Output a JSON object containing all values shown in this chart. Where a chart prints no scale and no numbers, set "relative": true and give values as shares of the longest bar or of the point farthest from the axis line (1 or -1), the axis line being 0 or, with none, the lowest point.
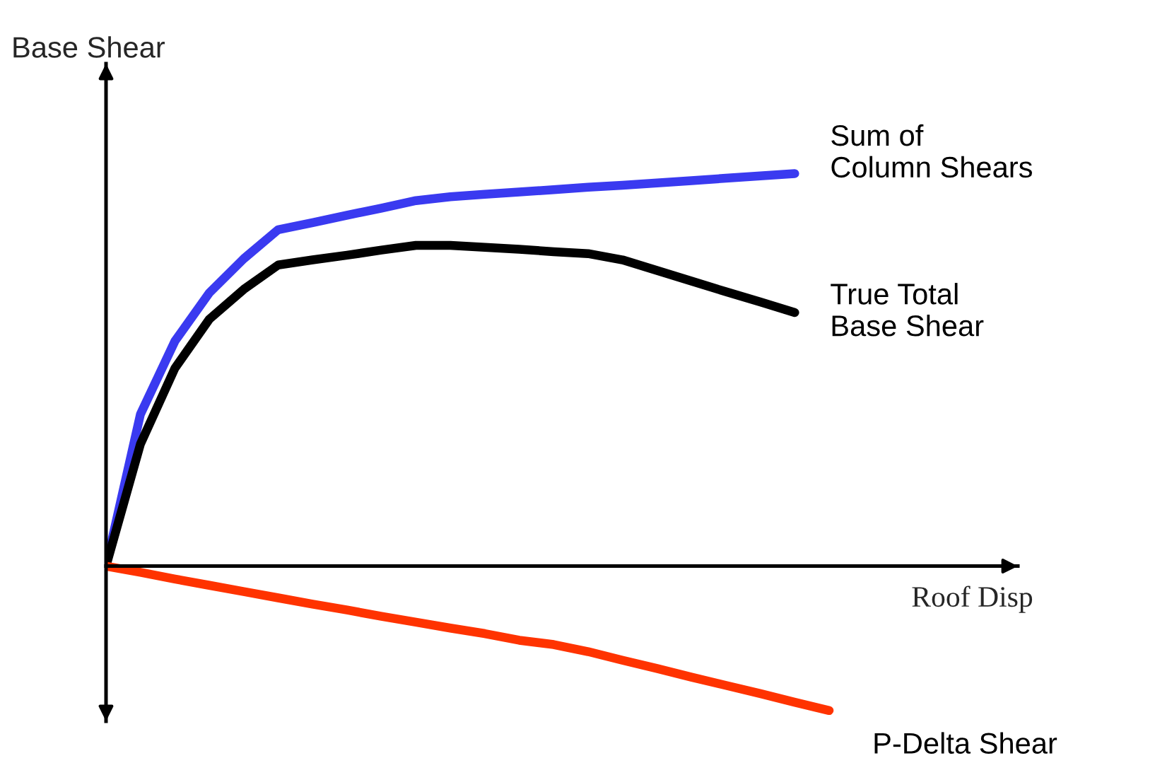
{
  "chart_data": {
    "type": "line",
    "relative": true,
    "xlabel": "Roof Disp",
    "ylabel": "Base Shear",
    "legend": false,
    "marker": "none",
    "line_style": "solid",
    "categories": [
      null,
      null,
      null,
      null,
      null,
      null,
      null,
      null,
      null,
      null,
      null,
      null,
      null,
      null,
      null,
      null,
      null,
      null,
      null,
      null,
      null,
      null
    ],
    "series": [
      {
        "name": "Sum of\nColumn Shears",
        "color": "#3a3af0",
        "values": [
          0,
          0.387,
          0.573,
          0.696,
          0.783,
          0.857,
          0.875,
          0.894,
          0.912,
          0.931,
          0.941,
          0.947,
          0.953,
          0.959,
          0.965,
          0.97,
          0.976,
          0.982,
          0.988,
          0.994,
          1.0,
          null
        ]
      },
      {
        "name": "True Total\nBase Shear",
        "color": "#000000",
        "values": [
          0,
          0.311,
          0.504,
          0.629,
          0.705,
          0.767,
          0.78,
          0.792,
          0.805,
          0.817,
          0.817,
          0.812,
          0.807,
          0.801,
          0.796,
          0.78,
          0.753,
          0.726,
          0.699,
          0.673,
          0.646,
          null
        ]
      },
      {
        "name": "P-Delta Shear",
        "color": "#ff3300",
        "values": [
          0,
          -0.016,
          -0.033,
          -0.049,
          -0.065,
          -0.081,
          -0.097,
          -0.112,
          -0.128,
          -0.143,
          -0.158,
          -0.172,
          -0.189,
          -0.2,
          -0.218,
          -0.24,
          -0.261,
          -0.283,
          -0.304,
          -0.325,
          -0.347,
          -0.368
        ]
      }
    ]
  }
}
